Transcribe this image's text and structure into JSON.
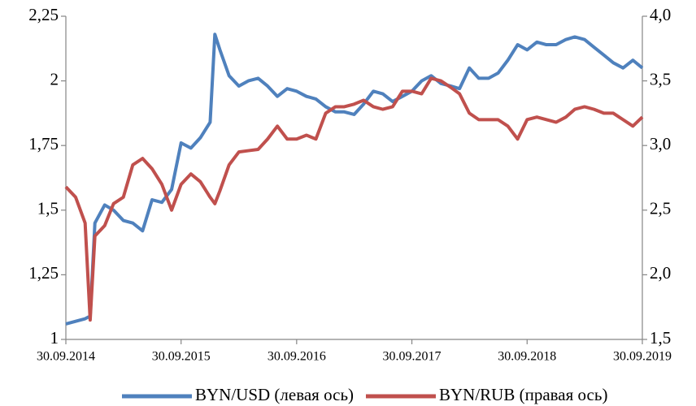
{
  "chart_data": {
    "type": "line",
    "x": [
      "30.09.2014",
      "31.10.2014",
      "30.11.2014",
      "16.12.2014",
      "31.12.2014",
      "31.01.2015",
      "28.02.2015",
      "31.03.2015",
      "30.04.2015",
      "31.05.2015",
      "30.06.2015",
      "31.07.2015",
      "31.08.2015",
      "30.09.2015",
      "31.10.2015",
      "30.11.2015",
      "31.12.2015",
      "15.01.2016",
      "31.01.2016",
      "29.02.2016",
      "31.03.2016",
      "30.04.2016",
      "31.05.2016",
      "30.06.2016",
      "31.07.2016",
      "31.08.2016",
      "30.09.2016",
      "31.10.2016",
      "30.11.2016",
      "31.12.2016",
      "31.01.2017",
      "28.02.2017",
      "31.03.2017",
      "30.04.2017",
      "31.05.2017",
      "30.06.2017",
      "31.07.2017",
      "31.08.2017",
      "30.09.2017",
      "31.10.2017",
      "30.11.2017",
      "31.12.2017",
      "31.01.2018",
      "28.02.2018",
      "31.03.2018",
      "30.04.2018",
      "31.05.2018",
      "30.06.2018",
      "31.07.2018",
      "31.08.2018",
      "30.09.2018",
      "31.10.2018",
      "30.11.2018",
      "31.12.2018",
      "31.01.2019",
      "28.02.2019",
      "31.03.2019",
      "30.04.2019",
      "31.05.2019",
      "30.06.2019",
      "31.07.2019",
      "31.08.2019",
      "30.09.2019"
    ],
    "series": [
      {
        "name": "BYN/USD (левая ось)",
        "color": "#4f81bd",
        "axis": "y",
        "values": [
          1.06,
          1.07,
          1.08,
          1.09,
          1.45,
          1.52,
          1.5,
          1.46,
          1.45,
          1.42,
          1.54,
          1.53,
          1.58,
          1.76,
          1.74,
          1.78,
          1.84,
          2.18,
          2.12,
          2.02,
          1.98,
          2.0,
          2.01,
          1.98,
          1.94,
          1.97,
          1.96,
          1.94,
          1.93,
          1.9,
          1.88,
          1.88,
          1.87,
          1.91,
          1.96,
          1.95,
          1.92,
          1.94,
          1.96,
          2.0,
          2.02,
          1.99,
          1.98,
          1.97,
          2.05,
          2.01,
          2.01,
          2.03,
          2.08,
          2.14,
          2.12,
          2.15,
          2.14,
          2.14,
          2.16,
          2.17,
          2.16,
          2.13,
          2.1,
          2.07,
          2.05,
          2.08,
          2.05
        ]
      },
      {
        "name": "BYN/RUB (правая ось)",
        "color": "#c0504d",
        "axis": "y2",
        "values": [
          2.68,
          2.6,
          2.4,
          1.65,
          2.3,
          2.38,
          2.55,
          2.6,
          2.85,
          2.9,
          2.82,
          2.7,
          2.5,
          2.7,
          2.78,
          2.72,
          2.6,
          2.55,
          2.65,
          2.85,
          2.95,
          2.96,
          2.97,
          3.05,
          3.15,
          3.05,
          3.05,
          3.08,
          3.05,
          3.25,
          3.3,
          3.3,
          3.32,
          3.35,
          3.3,
          3.28,
          3.3,
          3.42,
          3.42,
          3.4,
          3.52,
          3.5,
          3.45,
          3.4,
          3.25,
          3.2,
          3.2,
          3.2,
          3.15,
          3.05,
          3.2,
          3.22,
          3.2,
          3.18,
          3.22,
          3.28,
          3.3,
          3.28,
          3.25,
          3.25,
          3.2,
          3.15,
          3.22
        ]
      }
    ],
    "xlim": [
      "30.09.2014",
      "30.09.2019"
    ],
    "xticks": [
      "30.09.2014",
      "30.09.2015",
      "30.09.2016",
      "30.09.2017",
      "30.09.2018",
      "30.09.2019"
    ],
    "ylim": [
      1,
      2.25
    ],
    "yticks": [
      1,
      {
        "value": 1.25,
        "label": "1,25"
      },
      {
        "value": 1.5,
        "label": "1,5"
      },
      {
        "value": 1.75,
        "label": "1,75"
      },
      2,
      {
        "value": 2.25,
        "label": "2,25"
      }
    ],
    "y2lim": [
      1.5,
      4.0
    ],
    "y2ticks": [
      {
        "value": 1.5,
        "label": "1,5"
      },
      {
        "value": 2.0,
        "label": "2,0"
      },
      {
        "value": 2.5,
        "label": "2,5"
      },
      {
        "value": 3.0,
        "label": "3,0"
      },
      {
        "value": 3.5,
        "label": "3,5"
      },
      {
        "value": 4.0,
        "label": "4,0"
      }
    ],
    "grid": false,
    "legend": "bottom"
  }
}
